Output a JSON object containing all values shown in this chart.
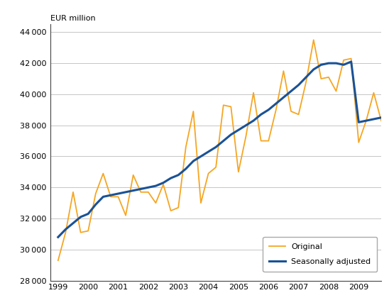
{
  "ylabel": "EUR million",
  "ylim": [
    28000,
    44500
  ],
  "yticks": [
    28000,
    30000,
    32000,
    34000,
    36000,
    38000,
    40000,
    42000,
    44000
  ],
  "orange_color": "#f5a623",
  "blue_color": "#1a5296",
  "background_color": "#ffffff",
  "grid_color": "#bbbbbb",
  "legend_labels": [
    "Original",
    "Seasonally adjusted"
  ],
  "original": [
    29300,
    31100,
    33700,
    31100,
    31200,
    33600,
    34900,
    33400,
    33400,
    32200,
    34800,
    33700,
    33700,
    33000,
    34200,
    32500,
    32700,
    36600,
    38900,
    33000,
    34900,
    35300,
    39300,
    39200,
    35000,
    37300,
    40100,
    37000,
    37000,
    39000,
    41500,
    38900,
    38700,
    40800,
    43500,
    41000,
    41100,
    40200,
    42200,
    42300,
    36900,
    38300,
    40100,
    38300
  ],
  "seasonally_adjusted": [
    30800,
    31300,
    31700,
    32100,
    32300,
    32900,
    33400,
    33500,
    33600,
    33700,
    33800,
    33900,
    34000,
    34100,
    34300,
    34600,
    34800,
    35200,
    35700,
    36000,
    36300,
    36600,
    37000,
    37400,
    37700,
    38000,
    38300,
    38700,
    39000,
    39400,
    39800,
    40200,
    40600,
    41100,
    41600,
    41900,
    42000,
    42000,
    41900,
    42100,
    38200,
    38300,
    38400,
    38500
  ],
  "start_year": 1999,
  "n_quarters": 44,
  "xlim": [
    1998.75,
    2009.75
  ],
  "xticks": [
    1999,
    2000,
    2001,
    2002,
    2003,
    2004,
    2005,
    2006,
    2007,
    2008,
    2009
  ],
  "title_fontsize": 8,
  "tick_fontsize": 8,
  "legend_fontsize": 8
}
